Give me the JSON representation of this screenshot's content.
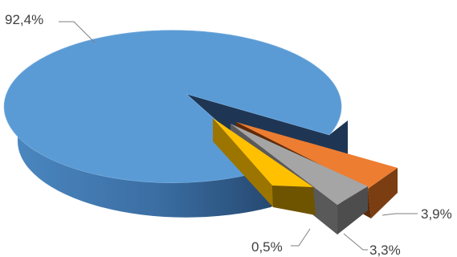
{
  "chart_data": {
    "type": "pie",
    "style": "3d-exploded",
    "slices": [
      {
        "label": "92,4%",
        "value": 92.4,
        "color": "#5b9bd5",
        "side_color": "#3a6a9c"
      },
      {
        "label": "3,9%",
        "value": 3.9,
        "color": "#ed7d31",
        "side_color": "#7a3e12"
      },
      {
        "label": "3,3%",
        "value": 3.3,
        "color": "#a5a5a5",
        "side_color": "#4d4d4d"
      },
      {
        "label": "0,5%",
        "value": 0.5,
        "color": "#ffc000",
        "side_color": "#6e5300"
      }
    ],
    "legend": "none",
    "title": ""
  }
}
